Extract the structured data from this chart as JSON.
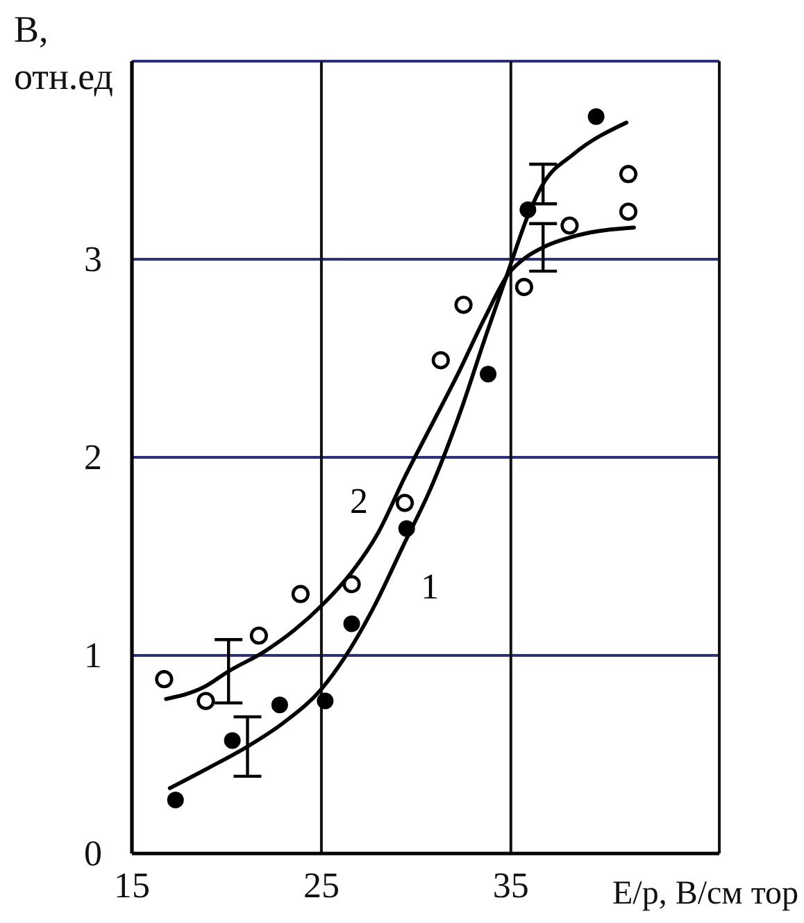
{
  "chart_data": {
    "type": "scatter",
    "xlabel": "E/p, B/см тор",
    "ylabel": "B, отн.ед",
    "xlim": [
      15,
      46
    ],
    "ylim": [
      0,
      4
    ],
    "xticks": [
      15,
      25,
      35
    ],
    "yticks": [
      0,
      1,
      2,
      3
    ],
    "grid": true,
    "marker": "circle",
    "series": [
      {
        "color": "#000000",
        "x": [
          17.3,
          20.3,
          22.8,
          25.2,
          26.6,
          29.5,
          33.8,
          35.9,
          39.5
        ],
        "values": [
          0.27,
          0.57,
          0.75,
          0.77,
          1.16,
          1.64,
          2.42,
          3.25,
          3.72
        ]
      },
      {
        "color": "#000000",
        "x": [
          16.7,
          18.9,
          21.7,
          23.9,
          26.6,
          29.4,
          31.3,
          32.5,
          35.7,
          38.1,
          41.2,
          41.2
        ],
        "values": [
          0.88,
          0.77,
          1.1,
          1.31,
          1.36,
          1.77,
          2.49,
          2.77,
          2.86,
          3.17,
          3.24,
          3.43
        ]
      },
      {
        "type": "line",
        "name": "1",
        "color": "#000000",
        "marker": "none",
        "x": [
          17.0,
          19.0,
          21.1,
          23.0,
          25.0,
          26.3,
          27.8,
          29.3,
          30.8,
          32.3,
          33.7,
          34.9,
          35.9,
          36.7,
          38.3,
          41.1
        ],
        "values": [
          0.33,
          0.43,
          0.54,
          0.66,
          0.83,
          1.0,
          1.25,
          1.55,
          1.85,
          2.22,
          2.62,
          2.95,
          3.22,
          3.38,
          3.53,
          3.69
        ],
        "errors": [
          null,
          null,
          0.15,
          null,
          null,
          null,
          null,
          null,
          null,
          null,
          null,
          null,
          null,
          0.1,
          null,
          null
        ]
      },
      {
        "type": "line",
        "name": "2",
        "color": "#000000",
        "marker": "none",
        "x": [
          16.8,
          18.8,
          20.1,
          22.0,
          23.6,
          25.1,
          26.6,
          28.0,
          29.4,
          30.8,
          32.2,
          33.6,
          34.9,
          35.8,
          36.7,
          38.5,
          41.5
        ],
        "values": [
          0.78,
          0.84,
          0.92,
          1.02,
          1.13,
          1.26,
          1.42,
          1.62,
          1.9,
          2.16,
          2.42,
          2.7,
          2.93,
          3.01,
          3.06,
          3.12,
          3.16
        ],
        "errors": [
          null,
          null,
          0.16,
          null,
          null,
          null,
          null,
          null,
          null,
          null,
          null,
          null,
          null,
          null,
          0.12,
          null,
          null
        ]
      }
    ]
  }
}
